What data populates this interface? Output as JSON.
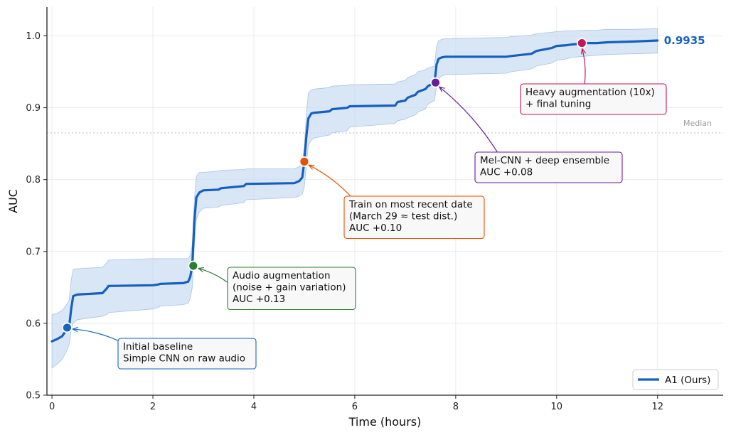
{
  "chart_data": {
    "type": "line",
    "title": "",
    "xlabel": "Time (hours)",
    "ylabel": "AUC",
    "xlim": [
      -0.1,
      13.3
    ],
    "ylim": [
      0.5,
      1.04
    ],
    "xticks": [
      0,
      2,
      4,
      6,
      8,
      10,
      12
    ],
    "yticks": [
      0.5,
      0.6,
      0.7,
      0.8,
      0.9,
      1.0
    ],
    "xtick_labels": [
      "0",
      "2",
      "4",
      "6",
      "8",
      "10",
      "12"
    ],
    "ytick_labels": [
      "0.5",
      "0.6",
      "0.7",
      "0.8",
      "0.9",
      "1.0"
    ],
    "grid": true,
    "legend": {
      "placement": "bottom-right",
      "entries": [
        "A1 (Ours)"
      ]
    },
    "series": [
      {
        "name": "A1 (Ours)",
        "color": "#1560bd",
        "band_color": "#c9dcf2",
        "x": [
          0,
          0.1,
          0.2,
          0.28,
          0.34,
          0.38,
          0.42,
          0.5,
          1.0,
          1.08,
          1.12,
          2.0,
          2.1,
          2.15,
          2.6,
          2.7,
          2.74,
          2.78,
          2.82,
          2.86,
          2.92,
          3.0,
          3.3,
          3.35,
          3.8,
          3.85,
          4.8,
          4.9,
          4.96,
          5.0,
          5.04,
          5.08,
          5.14,
          5.2,
          5.5,
          5.55,
          5.85,
          5.9,
          6.8,
          6.85,
          7.0,
          7.05,
          7.2,
          7.25,
          7.4,
          7.45,
          7.58,
          7.62,
          7.66,
          7.72,
          7.8,
          9.0,
          9.1,
          9.5,
          9.6,
          9.9,
          10.0,
          10.2,
          10.3,
          10.6,
          10.8,
          11.0,
          11.5,
          12.0
        ],
        "y": [
          0.575,
          0.578,
          0.582,
          0.59,
          0.595,
          0.62,
          0.638,
          0.64,
          0.642,
          0.648,
          0.652,
          0.653,
          0.654,
          0.655,
          0.656,
          0.658,
          0.665,
          0.68,
          0.74,
          0.775,
          0.782,
          0.785,
          0.786,
          0.788,
          0.791,
          0.794,
          0.795,
          0.798,
          0.803,
          0.825,
          0.86,
          0.885,
          0.892,
          0.893,
          0.895,
          0.898,
          0.9,
          0.902,
          0.903,
          0.908,
          0.91,
          0.914,
          0.918,
          0.922,
          0.926,
          0.93,
          0.935,
          0.96,
          0.968,
          0.97,
          0.971,
          0.971,
          0.972,
          0.975,
          0.979,
          0.983,
          0.986,
          0.987,
          0.988,
          0.99,
          0.99,
          0.991,
          0.992,
          0.9935
        ],
        "lower": [
          0.538,
          0.543,
          0.55,
          0.56,
          0.57,
          0.59,
          0.6,
          0.605,
          0.61,
          0.612,
          0.615,
          0.62,
          0.622,
          0.624,
          0.626,
          0.628,
          0.635,
          0.65,
          0.705,
          0.745,
          0.755,
          0.76,
          0.762,
          0.764,
          0.768,
          0.772,
          0.775,
          0.777,
          0.78,
          0.79,
          0.82,
          0.848,
          0.855,
          0.858,
          0.862,
          0.865,
          0.868,
          0.873,
          0.878,
          0.882,
          0.884,
          0.886,
          0.89,
          0.894,
          0.898,
          0.905,
          0.91,
          0.93,
          0.94,
          0.944,
          0.946,
          0.948,
          0.95,
          0.954,
          0.958,
          0.962,
          0.966,
          0.968,
          0.97,
          0.972,
          0.973,
          0.974,
          0.975,
          0.976
        ],
        "upper": [
          0.612,
          0.614,
          0.618,
          0.625,
          0.632,
          0.66,
          0.675,
          0.676,
          0.678,
          0.684,
          0.688,
          0.69,
          0.69,
          0.69,
          0.69,
          0.69,
          0.695,
          0.71,
          0.77,
          0.805,
          0.81,
          0.81,
          0.812,
          0.813,
          0.814,
          0.815,
          0.815,
          0.818,
          0.824,
          0.845,
          0.89,
          0.92,
          0.925,
          0.926,
          0.928,
          0.93,
          0.931,
          0.932,
          0.933,
          0.936,
          0.938,
          0.942,
          0.946,
          0.95,
          0.953,
          0.955,
          0.958,
          0.985,
          0.993,
          0.995,
          0.996,
          0.998,
          0.999,
          1.001,
          1.003,
          1.005,
          1.006,
          1.007,
          1.007,
          1.008,
          1.008,
          1.009,
          1.009,
          1.01
        ]
      }
    ],
    "final_label": "0.9935",
    "reference_line": {
      "y": 0.865,
      "label": "Median",
      "color": "#bbbbbb"
    },
    "annotations": [
      {
        "x": 0.3,
        "y": 0.594,
        "color": "#1565c0",
        "lines": [
          "Initial baseline",
          "Simple CNN on raw audio"
        ]
      },
      {
        "x": 2.8,
        "y": 0.68,
        "color": "#2e7d32",
        "lines": [
          "Audio augmentation",
          "(noise + gain variation)",
          "AUC +0.13"
        ]
      },
      {
        "x": 5.0,
        "y": 0.825,
        "color": "#e65100",
        "lines": [
          "Train on most recent date",
          "(March 29 ≈ test dist.)",
          "AUC +0.10"
        ]
      },
      {
        "x": 7.6,
        "y": 0.935,
        "color": "#6a1b9a",
        "lines": [
          "Mel-CNN + deep ensemble",
          "AUC +0.08"
        ]
      },
      {
        "x": 10.5,
        "y": 0.99,
        "color": "#c2185b",
        "lines": [
          "Heavy augmentation (10x)",
          "+ final tuning"
        ]
      }
    ]
  }
}
